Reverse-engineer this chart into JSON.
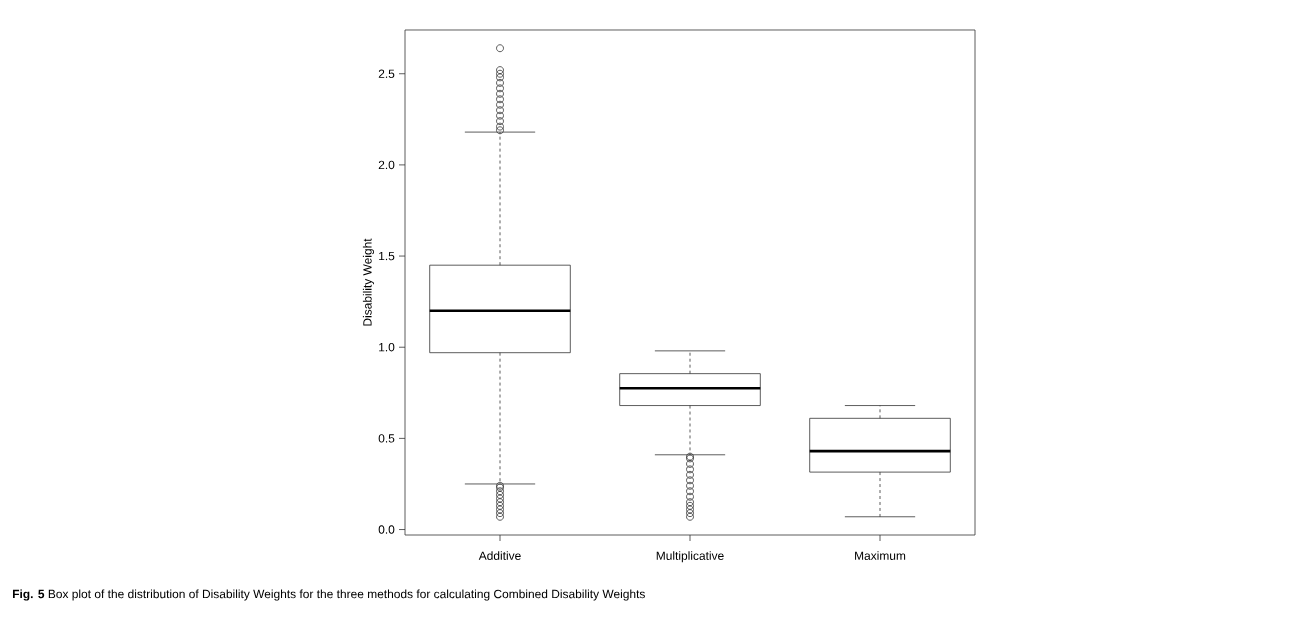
{
  "chart_data": {
    "type": "box",
    "ylabel": "Disability Weight",
    "categories": [
      "Additive",
      "Multiplicative",
      "Maximum"
    ],
    "boxes": [
      {
        "low": 0.25,
        "q1": 0.97,
        "median": 1.2,
        "q3": 1.45,
        "high": 2.18,
        "outliers": [
          0.07,
          0.09,
          0.11,
          0.13,
          0.15,
          0.17,
          0.19,
          0.21,
          0.23,
          0.24,
          2.19,
          2.21,
          2.24,
          2.27,
          2.3,
          2.33,
          2.36,
          2.39,
          2.42,
          2.45,
          2.48,
          2.5,
          2.52,
          2.64
        ]
      },
      {
        "low": 0.41,
        "q1": 0.68,
        "median": 0.775,
        "q3": 0.855,
        "high": 0.98,
        "outliers": [
          0.07,
          0.09,
          0.11,
          0.13,
          0.15,
          0.18,
          0.21,
          0.24,
          0.27,
          0.3,
          0.33,
          0.36,
          0.39,
          0.4
        ]
      },
      {
        "low": 0.07,
        "q1": 0.315,
        "median": 0.43,
        "q3": 0.61,
        "high": 0.68
      }
    ],
    "color": "#333333",
    "marker": "circle",
    "ylim": [
      -0.03,
      2.74
    ],
    "yticks": [
      {
        "value": 0,
        "label": "0.0"
      },
      {
        "value": 0.5,
        "label": "0.5"
      },
      {
        "value": 1,
        "label": "1.0"
      },
      {
        "value": 1.5,
        "label": "1.5"
      },
      {
        "value": 2,
        "label": "2.0"
      },
      {
        "value": 2.5,
        "label": "2.5"
      }
    ],
    "annotations": [
      "**Fig. 5** Box plot of the distribution of Disability Weights for the three methods for calculating Combined Disability Weights"
    ]
  }
}
